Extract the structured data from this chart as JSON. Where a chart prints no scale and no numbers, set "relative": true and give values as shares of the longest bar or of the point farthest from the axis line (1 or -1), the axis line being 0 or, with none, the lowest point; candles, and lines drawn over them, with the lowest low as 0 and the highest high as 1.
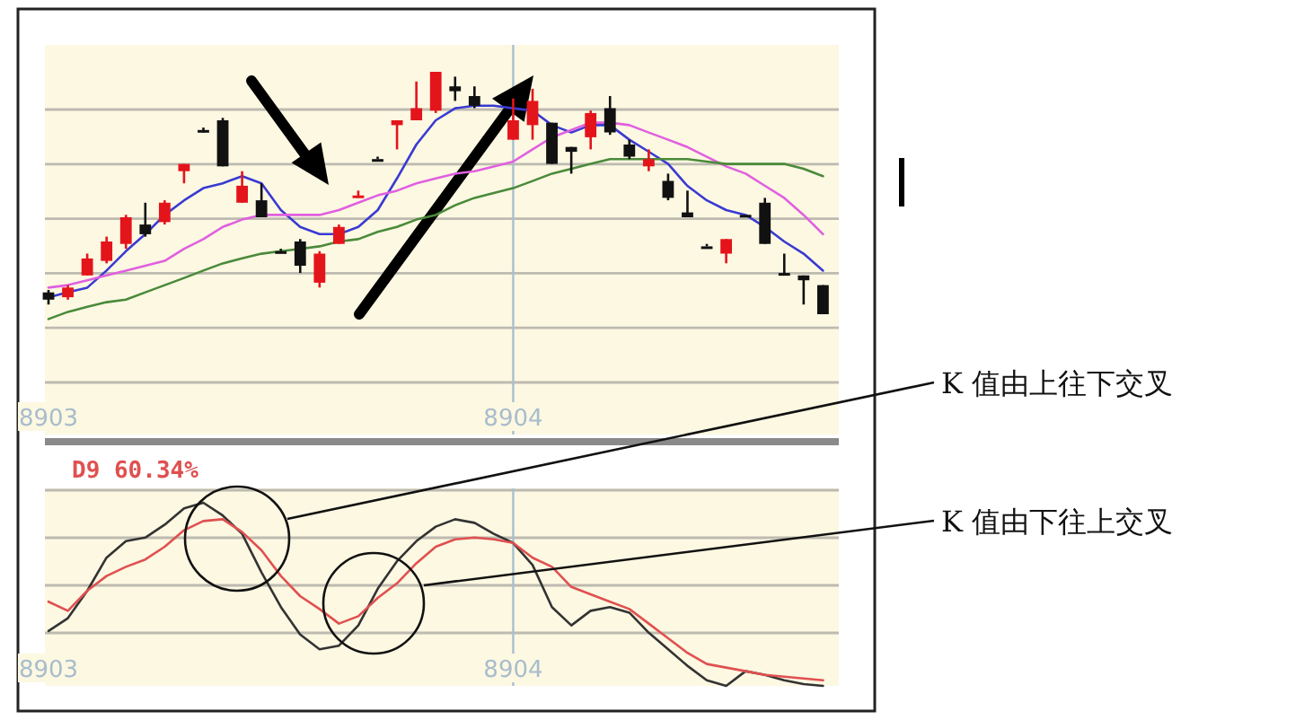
{
  "chart_data": [
    {
      "type": "candlestick",
      "relative": true,
      "grid": true,
      "categories": [
        "8903",
        null,
        null,
        null,
        null,
        null,
        null,
        null,
        null,
        null,
        null,
        null,
        null,
        null,
        null,
        null,
        null,
        null,
        null,
        null,
        null,
        null,
        null,
        null,
        "8904",
        null,
        null,
        null,
        null,
        null,
        null,
        null,
        null,
        null,
        null,
        null,
        null,
        null,
        null,
        null,
        null
      ],
      "ohlc": [
        [
          0.09,
          0.1,
          0.04,
          0.06
        ],
        [
          0.07,
          0.12,
          0.06,
          0.11
        ],
        [
          0.16,
          0.25,
          0.16,
          0.23
        ],
        [
          0.22,
          0.32,
          0.21,
          0.3
        ],
        [
          0.29,
          0.41,
          0.27,
          0.4
        ],
        [
          0.37,
          0.46,
          0.32,
          0.33
        ],
        [
          0.38,
          0.47,
          0.37,
          0.46
        ],
        [
          0.59,
          0.62,
          0.54,
          0.62
        ],
        [
          0.76,
          0.77,
          0.75,
          0.76
        ],
        [
          0.8,
          0.81,
          0.61,
          0.61
        ],
        [
          0.46,
          0.59,
          0.46,
          0.53
        ],
        [
          0.47,
          0.54,
          0.4,
          0.4
        ],
        [
          0.26,
          0.27,
          0.26,
          0.26
        ],
        [
          0.3,
          0.31,
          0.17,
          0.2
        ],
        [
          0.13,
          0.26,
          0.11,
          0.25
        ],
        [
          0.29,
          0.37,
          0.29,
          0.36
        ],
        [
          0.48,
          0.51,
          0.48,
          0.49
        ],
        [
          0.64,
          0.65,
          0.64,
          0.64
        ],
        [
          0.78,
          0.8,
          0.68,
          0.8
        ],
        [
          0.8,
          0.96,
          0.8,
          0.85
        ],
        [
          0.84,
          1.0,
          0.83,
          1.0
        ],
        [
          0.94,
          0.98,
          0.88,
          0.92
        ],
        [
          0.9,
          0.94,
          0.85,
          0.86
        ],
        null,
        [
          0.72,
          0.89,
          0.72,
          0.8
        ],
        [
          0.78,
          0.93,
          0.72,
          0.88
        ],
        [
          0.79,
          0.79,
          0.62,
          0.62
        ],
        [
          0.69,
          0.69,
          0.58,
          0.67
        ],
        [
          0.73,
          0.84,
          0.68,
          0.83
        ],
        [
          0.85,
          0.9,
          0.74,
          0.75
        ],
        [
          0.7,
          0.72,
          0.64,
          0.65
        ],
        [
          0.61,
          0.68,
          0.59,
          0.64
        ],
        [
          0.55,
          0.58,
          0.47,
          0.48
        ],
        [
          0.42,
          0.51,
          0.4,
          0.4
        ],
        [
          0.28,
          0.29,
          0.28,
          0.28
        ],
        [
          0.25,
          0.31,
          0.21,
          0.31
        ],
        [
          0.41,
          0.41,
          0.41,
          0.41
        ],
        [
          0.46,
          0.48,
          0.29,
          0.29
        ],
        [
          0.17,
          0.25,
          0.16,
          0.16
        ],
        [
          0.16,
          0.16,
          0.04,
          0.14
        ],
        [
          0.12,
          0.12,
          0.0,
          0.0
        ]
      ],
      "colors": [
        "#111111",
        "#e4141b",
        "#e4141b",
        "#e4141b",
        "#e4141b",
        "#111111",
        "#e4141b",
        "#e4141b",
        "#111111",
        "#111111",
        "#e4141b",
        "#111111",
        "#111111",
        "#111111",
        "#e4141b",
        "#e4141b",
        "#e4141b",
        "#111111",
        "#e4141b",
        "#e4141b",
        "#e4141b",
        "#111111",
        "#111111",
        null,
        "#e4141b",
        "#e4141b",
        "#111111",
        "#111111",
        "#e4141b",
        "#111111",
        "#111111",
        "#e4141b",
        "#111111",
        "#111111",
        "#111111",
        "#e4141b",
        "#111111",
        "#111111",
        "#111111",
        "#111111",
        "#111111"
      ],
      "series": [
        {
          "type": "line",
          "color": "#3a3ad2",
          "values": [
            0.07,
            0.09,
            0.11,
            0.18,
            0.26,
            0.33,
            0.41,
            0.47,
            0.52,
            0.54,
            0.57,
            0.54,
            0.43,
            0.36,
            0.33,
            0.33,
            0.36,
            0.43,
            0.56,
            0.7,
            0.8,
            0.85,
            0.86,
            0.86,
            0.85,
            0.84,
            0.78,
            0.75,
            0.78,
            0.78,
            0.72,
            0.67,
            0.62,
            0.53,
            0.47,
            0.43,
            0.41,
            0.36,
            0.3,
            0.25,
            0.18
          ]
        },
        {
          "type": "line",
          "color": "#e060e0",
          "values": [
            0.11,
            0.12,
            0.14,
            0.16,
            0.18,
            0.2,
            0.22,
            0.27,
            0.31,
            0.36,
            0.39,
            0.41,
            0.41,
            0.41,
            0.41,
            0.43,
            0.46,
            0.49,
            0.51,
            0.54,
            0.56,
            0.58,
            0.59,
            0.61,
            0.63,
            0.68,
            0.73,
            0.76,
            0.79,
            0.79,
            0.78,
            0.75,
            0.72,
            0.69,
            0.65,
            0.61,
            0.58,
            0.53,
            0.48,
            0.41,
            0.33
          ]
        },
        {
          "type": "line",
          "color": "#4a8a3a",
          "values": [
            -0.02,
            0.01,
            0.03,
            0.05,
            0.06,
            0.09,
            0.12,
            0.15,
            0.18,
            0.21,
            0.23,
            0.25,
            0.26,
            0.27,
            0.28,
            0.3,
            0.31,
            0.34,
            0.36,
            0.39,
            0.41,
            0.45,
            0.48,
            0.5,
            0.52,
            0.55,
            0.58,
            0.6,
            0.62,
            0.64,
            0.64,
            0.64,
            0.64,
            0.64,
            0.63,
            0.62,
            0.62,
            0.62,
            0.62,
            0.6,
            0.57
          ]
        }
      ]
    },
    {
      "type": "line",
      "relative": true,
      "grid": true,
      "categories": [
        "8903",
        null,
        null,
        null,
        null,
        null,
        null,
        null,
        null,
        null,
        null,
        null,
        null,
        null,
        null,
        null,
        null,
        null,
        null,
        null,
        null,
        null,
        null,
        null,
        "8904",
        null,
        null,
        null,
        null,
        null,
        null,
        null,
        null,
        null,
        null,
        null,
        null,
        null,
        null,
        null,
        null
      ],
      "series": [
        {
          "color": "#333333",
          "values": [
            0.3,
            0.37,
            0.52,
            0.7,
            0.79,
            0.81,
            0.88,
            0.97,
            1.0,
            0.93,
            0.83,
            0.62,
            0.43,
            0.28,
            0.2,
            0.22,
            0.33,
            0.53,
            0.68,
            0.79,
            0.87,
            0.91,
            0.89,
            0.83,
            0.78,
            0.66,
            0.43,
            0.33,
            0.41,
            0.43,
            0.4,
            0.29,
            0.2,
            0.11,
            0.03,
            0.0,
            0.08,
            0.06,
            0.03,
            0.01,
            0.0
          ]
        },
        {
          "name": "D9 60.34%",
          "color": "#e05050",
          "values": [
            0.46,
            0.41,
            0.52,
            0.6,
            0.65,
            0.69,
            0.76,
            0.85,
            0.9,
            0.91,
            0.84,
            0.74,
            0.6,
            0.49,
            0.42,
            0.34,
            0.38,
            0.48,
            0.56,
            0.67,
            0.76,
            0.8,
            0.81,
            0.8,
            0.78,
            0.7,
            0.65,
            0.54,
            0.5,
            0.46,
            0.42,
            0.34,
            0.26,
            0.18,
            0.12,
            0.1,
            0.08,
            0.06,
            0.05,
            0.04,
            0.03
          ]
        }
      ],
      "annotations": [
        "K 值由上往下交叉",
        "K 值由下往上交叉"
      ]
    }
  ]
}
